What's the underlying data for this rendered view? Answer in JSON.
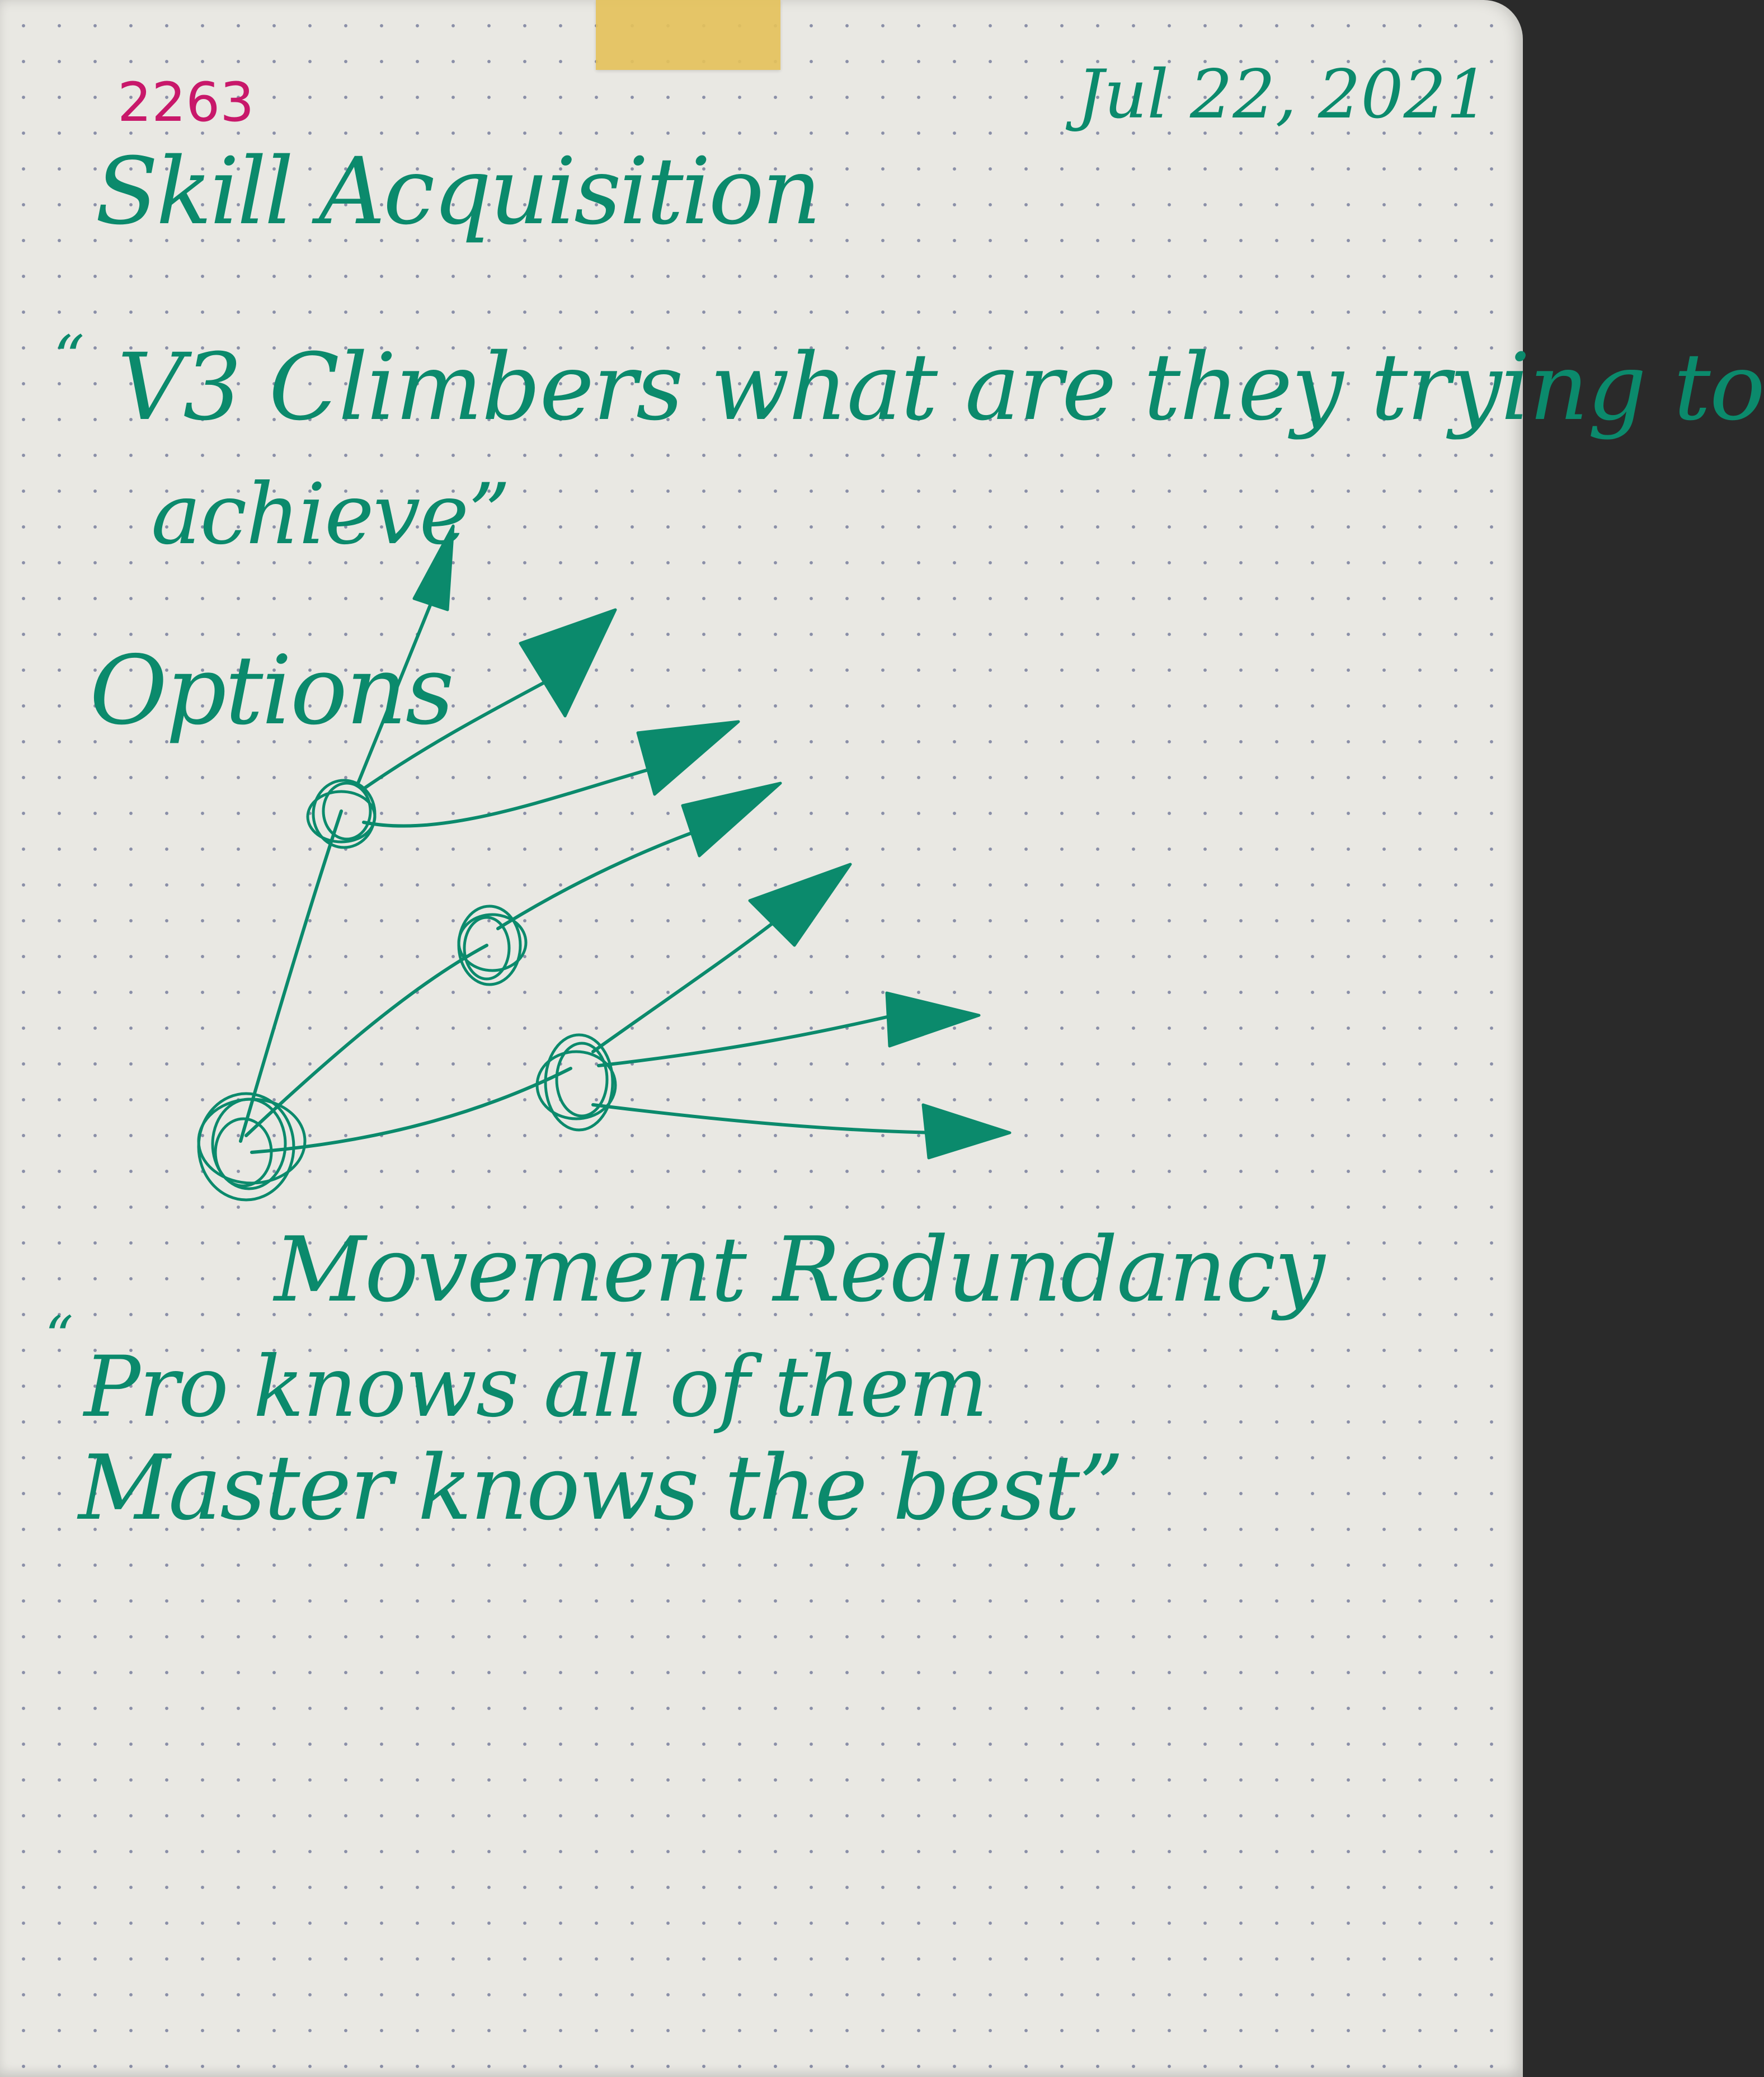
{
  "page": {
    "number": "2263",
    "date": "Jul 22, 2021",
    "title": "Skill Acquisition",
    "quote_mark_open": "“",
    "question_line_1": "V3 Climbers what are they trying to",
    "question_line_2": "achieve”",
    "options_label": "Options",
    "movement_label": "Movement Redundancy",
    "quote_mark_open_2": "“",
    "pro_line": "Pro knows all of them",
    "master_line": "Master knows the best”"
  },
  "colors": {
    "ink": "#0b8a6c",
    "page_number_ink": "#c8186a",
    "paper": "#e9e8e3",
    "dots": "#8a8fa8",
    "tape": "#e5c25a"
  }
}
